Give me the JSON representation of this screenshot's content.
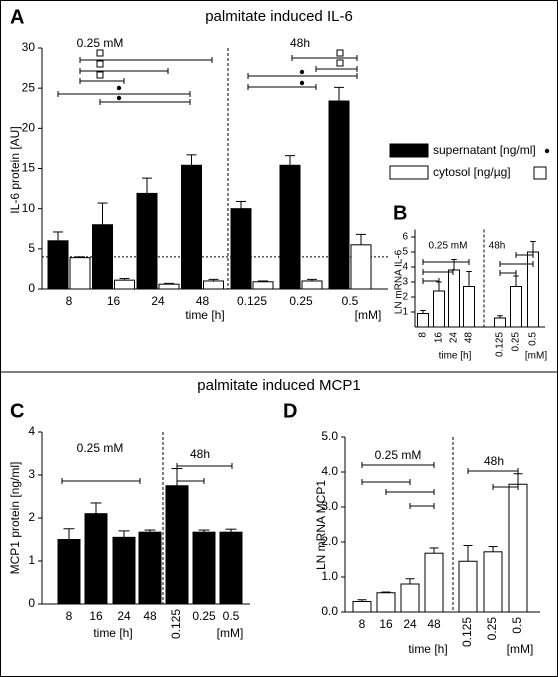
{
  "chart_data": [
    {
      "type": "bar",
      "panel": "A",
      "title": "palmitate induced IL-6",
      "y_label": "IL-6 protein [AU]",
      "categories": [
        "8",
        "16",
        "24",
        "48",
        "0.125",
        "0.25",
        "0.5"
      ],
      "series": [
        {
          "name": "supernatant [ng/ml]",
          "color": "#000000",
          "values": [
            6.0,
            8.0,
            11.9,
            15.4,
            10.0,
            15.4,
            23.4
          ],
          "errors": [
            1.1,
            2.7,
            1.9,
            1.3,
            0.9,
            1.2,
            1.7
          ]
        },
        {
          "name": "cytosol [ng/µg]",
          "color": "#ffffff",
          "values": [
            3.9,
            1.1,
            0.6,
            1.0,
            0.9,
            1.0,
            5.5
          ],
          "errors": [
            0.1,
            0.2,
            0.1,
            0.2,
            0.1,
            0.2,
            1.3
          ]
        }
      ],
      "ylim": [
        0,
        30
      ],
      "yticks": [
        0,
        5,
        10,
        15,
        20,
        25,
        30
      ],
      "reference_line": 4,
      "group_labels": [
        "0.25 mM",
        "48h"
      ],
      "x_labels": [
        "time [h]",
        "[mM]"
      ]
    },
    {
      "type": "bar",
      "panel": "B",
      "y_label": "LN mRNA IL-6",
      "categories": [
        "8",
        "16",
        "24",
        "48",
        "0.125",
        "0.25",
        "0.5"
      ],
      "series": [
        {
          "color": "#ffffff",
          "values": [
            0.9,
            2.4,
            3.8,
            2.7,
            0.6,
            2.7,
            5.0
          ],
          "errors": [
            0.2,
            0.6,
            0.7,
            1.0,
            0.15,
            0.7,
            0.7
          ]
        }
      ],
      "ylim": [
        0,
        6.5
      ],
      "yticks": [
        1,
        2,
        3,
        4,
        5,
        6
      ],
      "group_labels": [
        "0.25 mM",
        "48h"
      ],
      "x_labels": [
        "time [h]",
        "[mM]"
      ]
    },
    {
      "type": "bar",
      "panel": "C",
      "title": "palmitate induced MCP1",
      "y_label": "MCP1 protein [ng/ml]",
      "categories": [
        "8",
        "16",
        "24",
        "48",
        "0.125",
        "0.25",
        "0.5"
      ],
      "series": [
        {
          "color": "#000000",
          "values": [
            1.5,
            2.1,
            1.55,
            1.67,
            2.75,
            1.67,
            1.67
          ],
          "errors": [
            0.25,
            0.25,
            0.15,
            0.05,
            0.4,
            0.05,
            0.07
          ]
        }
      ],
      "ylim": [
        0,
        4
      ],
      "yticks": [
        0,
        1,
        2,
        3,
        4
      ],
      "group_labels": [
        "0.25 mM",
        "48h"
      ],
      "x_labels": [
        "time [h]",
        "[mM]"
      ]
    },
    {
      "type": "bar",
      "panel": "D",
      "y_label": "LN mRNA MCP1",
      "categories": [
        "8",
        "16",
        "24",
        "48",
        "0.125",
        "0.25",
        "0.5"
      ],
      "series": [
        {
          "color": "#ffffff",
          "values": [
            0.3,
            0.55,
            0.8,
            1.68,
            1.45,
            1.72,
            3.65
          ],
          "errors": [
            0.05,
            0.02,
            0.15,
            0.15,
            0.45,
            0.15,
            0.3
          ]
        }
      ],
      "ylim": [
        0,
        5
      ],
      "yticks": [
        {
          "value": 0,
          "label": "0.0"
        },
        {
          "value": 1,
          "label": "1.0"
        },
        {
          "value": 2,
          "label": "2.0"
        },
        {
          "value": 3,
          "label": "3.0"
        },
        {
          "value": 4,
          "label": "4.0"
        },
        {
          "value": 5,
          "label": "5.0"
        }
      ],
      "group_labels": [
        "0.25 mM",
        "48h"
      ],
      "x_labels": [
        "time [h]",
        "[mM]"
      ]
    }
  ]
}
